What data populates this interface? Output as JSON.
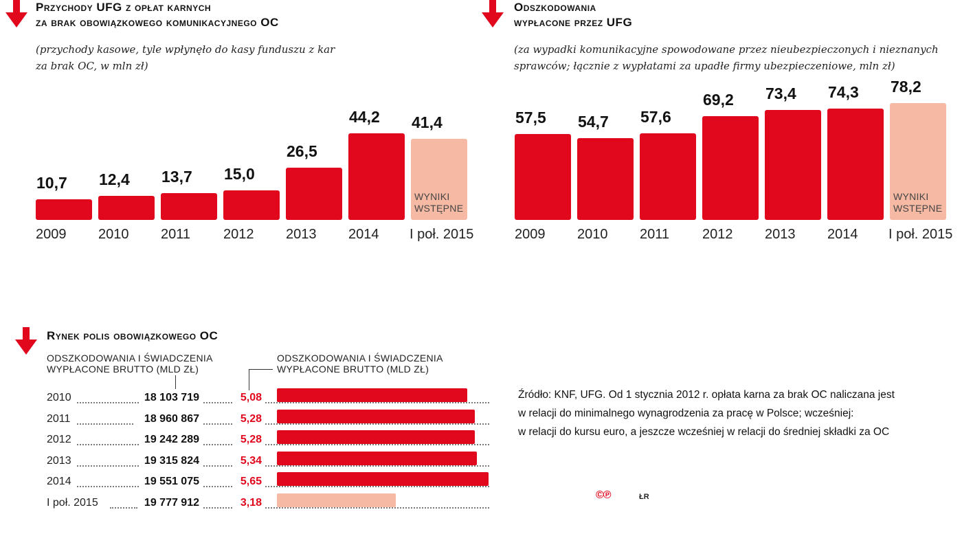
{
  "colors": {
    "red": "#e1071d",
    "pale": "#f6b9a4"
  },
  "chart_data": [
    {
      "type": "bar",
      "title_line1": "Przychody UFG z opłat karnych",
      "title_line2": "za brak obowiązkowego komunikacyjnego OC",
      "subtitle_line1": "(przychody kasowe, tyle wpłynęło do kasy funduszu z kar",
      "subtitle_line2": "za brak OC, w mln zł)",
      "categories": [
        "2009",
        "2010",
        "2011",
        "2012",
        "2013",
        "2014",
        "I poł. 2015"
      ],
      "values": [
        10.7,
        12.4,
        13.7,
        15.0,
        26.5,
        44.2,
        41.4
      ],
      "labels": [
        "10,7",
        "12,4",
        "13,7",
        "15,0",
        "26,5",
        "44,2",
        "41,4"
      ],
      "preliminary_index": 6,
      "note_line1": "WYNIKI",
      "note_line2": "WSTĘPNE"
    },
    {
      "type": "bar",
      "title_line1": "Odszkodowania",
      "title_line2": "wypłacone przez UFG",
      "subtitle_line1": "(za wypadki komunikacyjne spowodowane przez nieubezpieczonych i nieznanych",
      "subtitle_line2": "sprawców; łącznie z wypłatami za upadłe firmy ubezpieczeniowe, mln zł)",
      "categories": [
        "2009",
        "2010",
        "2011",
        "2012",
        "2013",
        "2014",
        "I poł. 2015"
      ],
      "values": [
        57.5,
        54.7,
        57.6,
        69.2,
        73.4,
        74.3,
        78.2
      ],
      "labels": [
        "57,5",
        "54,7",
        "57,6",
        "69,2",
        "73,4",
        "74,3",
        "78,2"
      ],
      "preliminary_index": 6,
      "note_line1": "WYNIKI",
      "note_line2": "WSTĘPNE"
    },
    {
      "type": "table",
      "title": "Rynek polis obowiązkowego OC",
      "col1_line1": "ODSZKODOWANIA I ŚWIADCZENIA",
      "col1_line2": "WYPŁACONE BRUTTO (MLD ZŁ)",
      "col2_line1": "ODSZKODOWANIA I ŚWIADCZENIA",
      "col2_line2": "WYPŁACONE BRUTTO (MLD ZŁ)",
      "rows": [
        {
          "year": "2010",
          "policies": "18 103 719",
          "payout_label": "5,08",
          "payout": 5.08,
          "preliminary": false
        },
        {
          "year": "2011",
          "policies": "18 960 867",
          "payout_label": "5,28",
          "payout": 5.28,
          "preliminary": false
        },
        {
          "year": "2012",
          "policies": "19 242 289",
          "payout_label": "5,28",
          "payout": 5.28,
          "preliminary": false
        },
        {
          "year": "2013",
          "policies": "19 315 824",
          "payout_label": "5,34",
          "payout": 5.34,
          "preliminary": false
        },
        {
          "year": "2014",
          "policies": "19 551 075",
          "payout_label": "5,65",
          "payout": 5.65,
          "preliminary": false
        },
        {
          "year": "I poł. 2015",
          "policies": "19 777 912",
          "payout_label": "3,18",
          "payout": 3.18,
          "preliminary": true
        }
      ],
      "xlim": [
        0,
        5.65
      ]
    }
  ],
  "source": {
    "line1": "Źródło: KNF, UFG. Od 1 stycznia 2012 r. opłata karna za brak OC naliczana jest",
    "line2": "w relacji do minimalnego wynagrodzenia za pracę w Polsce; wcześniej:",
    "line3": "w relacji do kursu euro, a jeszcze wcześniej w relacji do średniej składki za OC"
  },
  "logo_text": "©℗",
  "initials": "ŁR"
}
